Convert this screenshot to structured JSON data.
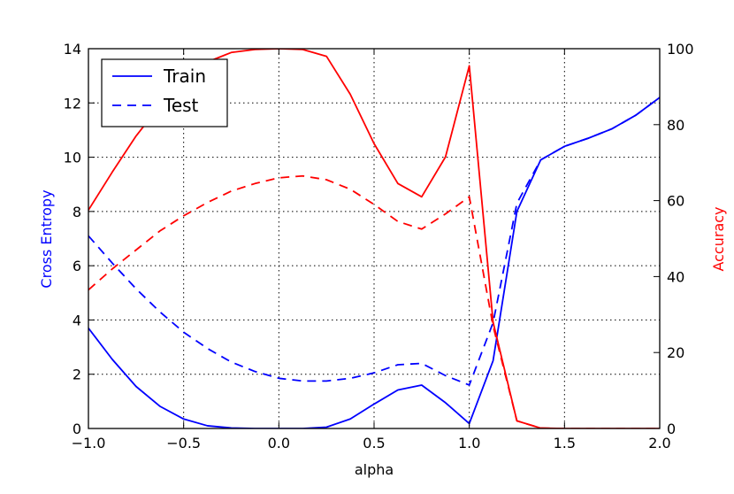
{
  "chart_data": {
    "type": "line",
    "xlabel": "alpha",
    "ylabel_left": "Cross Entropy",
    "ylabel_right": "Accuracy",
    "xlim": [
      -1.0,
      2.0
    ],
    "ylim_left": [
      0,
      14
    ],
    "ylim_right": [
      0,
      100
    ],
    "xticks": [
      "−1.0",
      "−0.5",
      "0.0",
      "0.5",
      "1.0",
      "1.5",
      "2.0"
    ],
    "yticks_left": [
      "0",
      "2",
      "4",
      "6",
      "8",
      "10",
      "12",
      "14"
    ],
    "yticks_right": [
      "0",
      "20",
      "40",
      "60",
      "80",
      "100"
    ],
    "grid": true,
    "legend_position": "top-left",
    "legend": [
      {
        "label": "Train",
        "style": "solid"
      },
      {
        "label": "Test",
        "style": "dashed"
      }
    ],
    "colors": {
      "loss": "#0000ff",
      "accuracy": "#ff0000",
      "grid": "#000000"
    },
    "x": [
      -1.0,
      -0.875,
      -0.75,
      -0.625,
      -0.5,
      -0.375,
      -0.25,
      -0.125,
      0.0,
      0.125,
      0.25,
      0.375,
      0.5,
      0.625,
      0.75,
      0.875,
      1.0,
      1.125,
      1.25,
      1.375,
      1.5,
      1.625,
      1.75,
      1.875,
      2.0
    ],
    "series": [
      {
        "name": "Train",
        "axis": "left",
        "metric": "loss",
        "style": "solid",
        "values": [
          3.7,
          2.55,
          1.55,
          0.82,
          0.35,
          0.1,
          0.02,
          0.0,
          0.0,
          0.0,
          0.05,
          0.35,
          0.9,
          1.42,
          1.6,
          0.95,
          0.18,
          2.5,
          8.0,
          9.9,
          10.4,
          10.7,
          11.05,
          11.55,
          12.2
        ]
      },
      {
        "name": "Test",
        "axis": "left",
        "metric": "loss",
        "style": "dashed",
        "values": [
          7.1,
          6.1,
          5.15,
          4.3,
          3.55,
          2.95,
          2.45,
          2.1,
          1.85,
          1.75,
          1.75,
          1.85,
          2.05,
          2.35,
          2.4,
          1.95,
          1.6,
          3.9,
          8.3,
          9.9,
          10.4,
          10.7,
          11.05,
          11.55,
          12.2
        ]
      },
      {
        "name": "Train",
        "axis": "right",
        "metric": "accuracy",
        "style": "solid",
        "values": [
          57.5,
          67.5,
          77.0,
          85.0,
          91.5,
          96.5,
          99.0,
          99.8,
          100.0,
          99.8,
          98.0,
          88.0,
          75.0,
          64.5,
          61.0,
          71.5,
          95.5,
          28.0,
          2.0,
          0.1,
          0.0,
          0.0,
          0.0,
          0.0,
          0.0
        ]
      },
      {
        "name": "Test",
        "axis": "right",
        "metric": "accuracy",
        "style": "dashed",
        "values": [
          36.5,
          42.0,
          47.0,
          52.0,
          56.0,
          59.5,
          62.5,
          64.5,
          66.0,
          66.5,
          65.5,
          63.0,
          59.0,
          54.5,
          52.5,
          56.5,
          61.0,
          27.0,
          2.0,
          0.1,
          0.0,
          0.0,
          0.0,
          0.0,
          0.0
        ]
      }
    ]
  }
}
